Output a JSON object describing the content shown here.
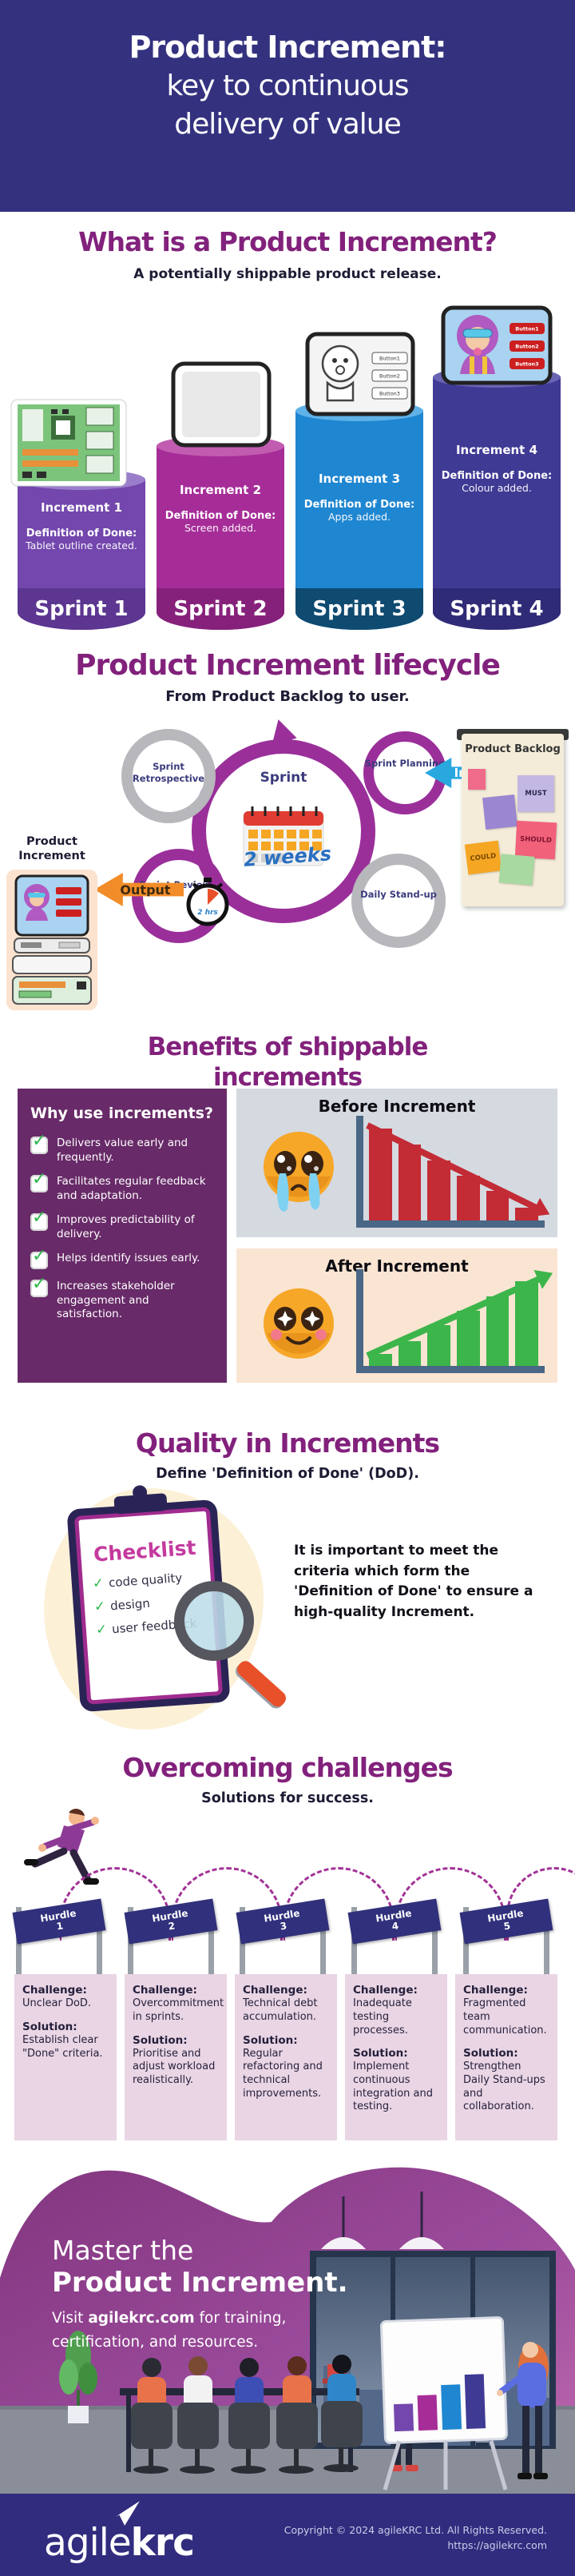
{
  "colors": {
    "header_bg": "#34327f",
    "heading_purple": "#82217c",
    "panel_purple": "#682a68",
    "hurdle_blue": "#30307c",
    "footer_bar_bg": "#312c7e",
    "before_red": "#c32b35",
    "after_green": "#3cb54a",
    "input_blue": "#29a8e0",
    "output_orange": "#f28c28",
    "ring_purple": "#9a2f9a"
  },
  "header": {
    "line1": "Product Increment:",
    "line2": "key to continuous",
    "line3": "delivery of value"
  },
  "what_is": {
    "title": "What is a Product Increment?",
    "subtitle": "A potentially shippable product release.",
    "tablet_buttons": [
      "Button1",
      "Button2",
      "Button3"
    ],
    "columns": [
      {
        "increment": "Increment 1",
        "dod_label": "Definition of Done:",
        "dod": "Tablet outline created.",
        "sprint": "Sprint 1"
      },
      {
        "increment": "Increment 2",
        "dod_label": "Definition of Done:",
        "dod": "Screen added.",
        "sprint": "Sprint 2"
      },
      {
        "increment": "Increment 3",
        "dod_label": "Definition of Done:",
        "dod": "Apps added.",
        "sprint": "Sprint 3"
      },
      {
        "increment": "Increment 4",
        "dod_label": "Definition of Done:",
        "dod": "Colour added.",
        "sprint": "Sprint 4"
      }
    ]
  },
  "lifecycle": {
    "title": "Product Increment lifecycle",
    "subtitle": "From Product Backlog to user.",
    "sprint_label": "Sprint",
    "duration": "2 weeks",
    "retrospective": "Sprint Retrospective",
    "planning": "Sprint Planning",
    "review": "Sprint Review",
    "standup": "Daily Stand-up",
    "review_time": "2 hrs",
    "input_label": "Input",
    "output_label": "Output",
    "backlog_title": "Product Backlog",
    "notes": [
      "MUST",
      "SHOULD",
      "COULD"
    ],
    "increment_label_1": "Product",
    "increment_label_2": "Increment"
  },
  "benefits": {
    "title_line1": "Benefits of shippable",
    "title_line2": "increments",
    "panel_title": "Why use increments?",
    "items": [
      "Delivers value early and frequently.",
      "Facilitates regular feedback and adaptation.",
      "Improves predictability of delivery.",
      "Helps identify issues early.",
      "Increases stakeholder engagement and satisfaction."
    ],
    "before_title": "Before Increment",
    "after_title": "After Increment",
    "before_bars": [
      92,
      76,
      60,
      45,
      30,
      13
    ],
    "after_bars": [
      13,
      27,
      44,
      60,
      76,
      92
    ]
  },
  "quality": {
    "title": "Quality in Increments",
    "subtitle": "Define 'Definition of Done' (DoD).",
    "checklist_title": "Checklist",
    "checklist_items": [
      "code quality",
      "design",
      "user feedback"
    ],
    "body": "It is important to meet the criteria which form the 'Definition of Done' to ensure a high-quality Increment."
  },
  "challenges": {
    "title": "Overcoming challenges",
    "subtitle": "Solutions for success.",
    "hurdle_label": "Hurdle",
    "challenge_label": "Challenge:",
    "solution_label": "Solution:",
    "cards": [
      {
        "num": "1",
        "challenge": "Unclear DoD.",
        "solution": "Establish clear \"Done\" criteria."
      },
      {
        "num": "2",
        "challenge": "Overcommitment in sprints.",
        "solution": "Prioritise and adjust workload realistically."
      },
      {
        "num": "3",
        "challenge": "Technical debt accumulation.",
        "solution": "Regular refactoring and technical improvements."
      },
      {
        "num": "4",
        "challenge": "Inadequate testing processes.",
        "solution": "Implement continuous integration and testing."
      },
      {
        "num": "5",
        "challenge": "Fragmented team communication.",
        "solution": "Strengthen Daily Stand-ups and collaboration."
      }
    ]
  },
  "footer": {
    "line1": "Master the",
    "line2": "Product Increment.",
    "cta_before": "Visit ",
    "cta_link": "agilekrc.com",
    "cta_after": " for training,",
    "cta_line2": "certification, and resources.",
    "logo_light": "agile",
    "logo_bold": "krc",
    "copyright": "Copyright © 2024 agileKRC Ltd. All Rights Reserved.",
    "url": "https://agilekrc.com"
  }
}
